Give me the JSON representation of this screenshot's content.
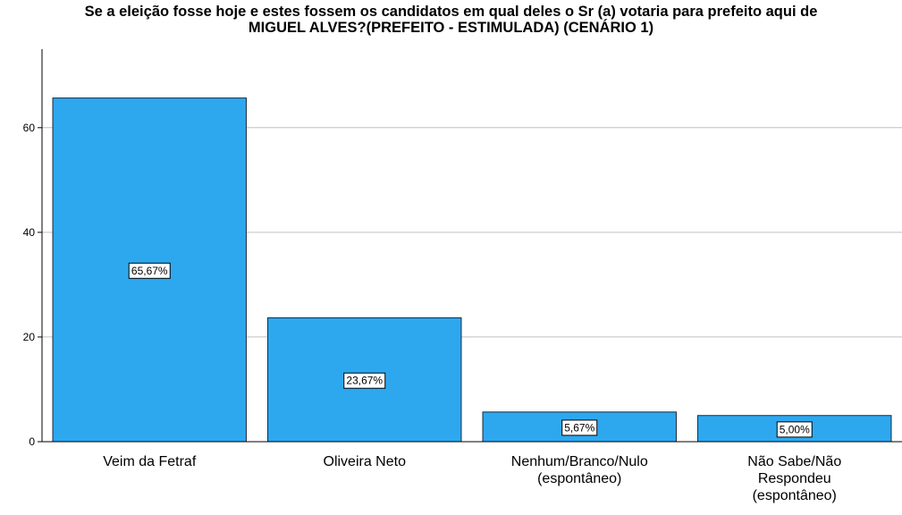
{
  "title": {
    "line1": "Se a eleição fosse hoje e estes fossem os candidatos em qual deles o Sr (a) votaria para prefeito aqui de",
    "line2": "MIGUEL ALVES?(PREFEITO - ESTIMULADA) (CENÁRIO 1)"
  },
  "colors": {
    "bar_fill": "#2da8ef",
    "bar_stroke": "#1b2a3a",
    "grid": "#c0c0c0",
    "axis": "#000000"
  },
  "chart_data": {
    "type": "bar",
    "title": "Se a eleição fosse hoje e estes fossem os candidatos em qual deles o Sr (a) votaria para prefeito aqui de MIGUEL ALVES?(PREFEITO - ESTIMULADA) (CENÁRIO 1)",
    "categories": [
      [
        "Veim da Fetraf"
      ],
      [
        "Oliveira Neto"
      ],
      [
        "Nenhum/Branco/Nulo",
        "(espontâneo)"
      ],
      [
        "Não Sabe/Não",
        "Respondeu",
        "(espontâneo)"
      ]
    ],
    "values": [
      65.67,
      23.67,
      5.67,
      5.0
    ],
    "data_labels": [
      "65,67%",
      "23,67%",
      "5,67%",
      "5,00%"
    ],
    "yticks": [
      "0",
      "20",
      "40",
      "60"
    ],
    "ylim": [
      0,
      75
    ],
    "xlabel": "",
    "ylabel": "",
    "grid": true
  }
}
